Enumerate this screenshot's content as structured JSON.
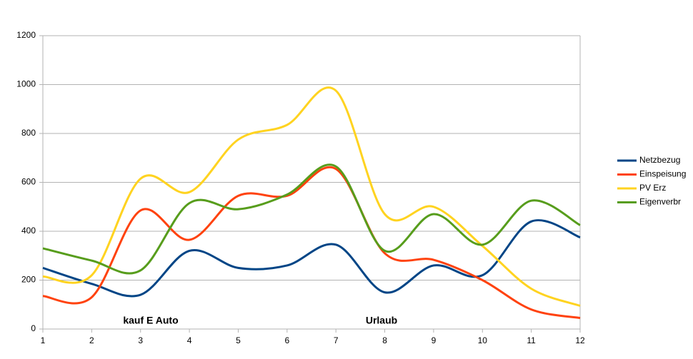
{
  "chart_data": {
    "type": "line",
    "x": [
      1,
      2,
      3,
      4,
      5,
      6,
      7,
      8,
      9,
      10,
      11,
      12
    ],
    "xlim": [
      1,
      12
    ],
    "xticks": [
      1,
      2,
      3,
      4,
      5,
      6,
      7,
      8,
      9,
      10,
      11,
      12
    ],
    "ylim": [
      0,
      1200
    ],
    "yticks": [
      0,
      200,
      400,
      600,
      800,
      1000,
      1200
    ],
    "grid": true,
    "smooth": true,
    "legend": "right",
    "series": [
      {
        "name": "Netzbezug",
        "color": "#004586",
        "values": [
          250,
          185,
          140,
          320,
          250,
          260,
          345,
          150,
          260,
          220,
          440,
          375
        ]
      },
      {
        "name": "Einspeisung",
        "color": "#ff420e",
        "values": [
          135,
          130,
          485,
          365,
          545,
          545,
          655,
          310,
          283,
          200,
          80,
          45
        ]
      },
      {
        "name": "PV Erz",
        "color": "#ffd320",
        "values": [
          215,
          220,
          615,
          560,
          775,
          835,
          975,
          470,
          500,
          340,
          165,
          95
        ]
      },
      {
        "name": "Eigenverbr",
        "color": "#579d1c",
        "values": [
          330,
          280,
          240,
          515,
          490,
          550,
          665,
          320,
          470,
          345,
          525,
          425
        ]
      }
    ],
    "annotations": [
      "kauf E Auto",
      "Urlaub"
    ]
  }
}
